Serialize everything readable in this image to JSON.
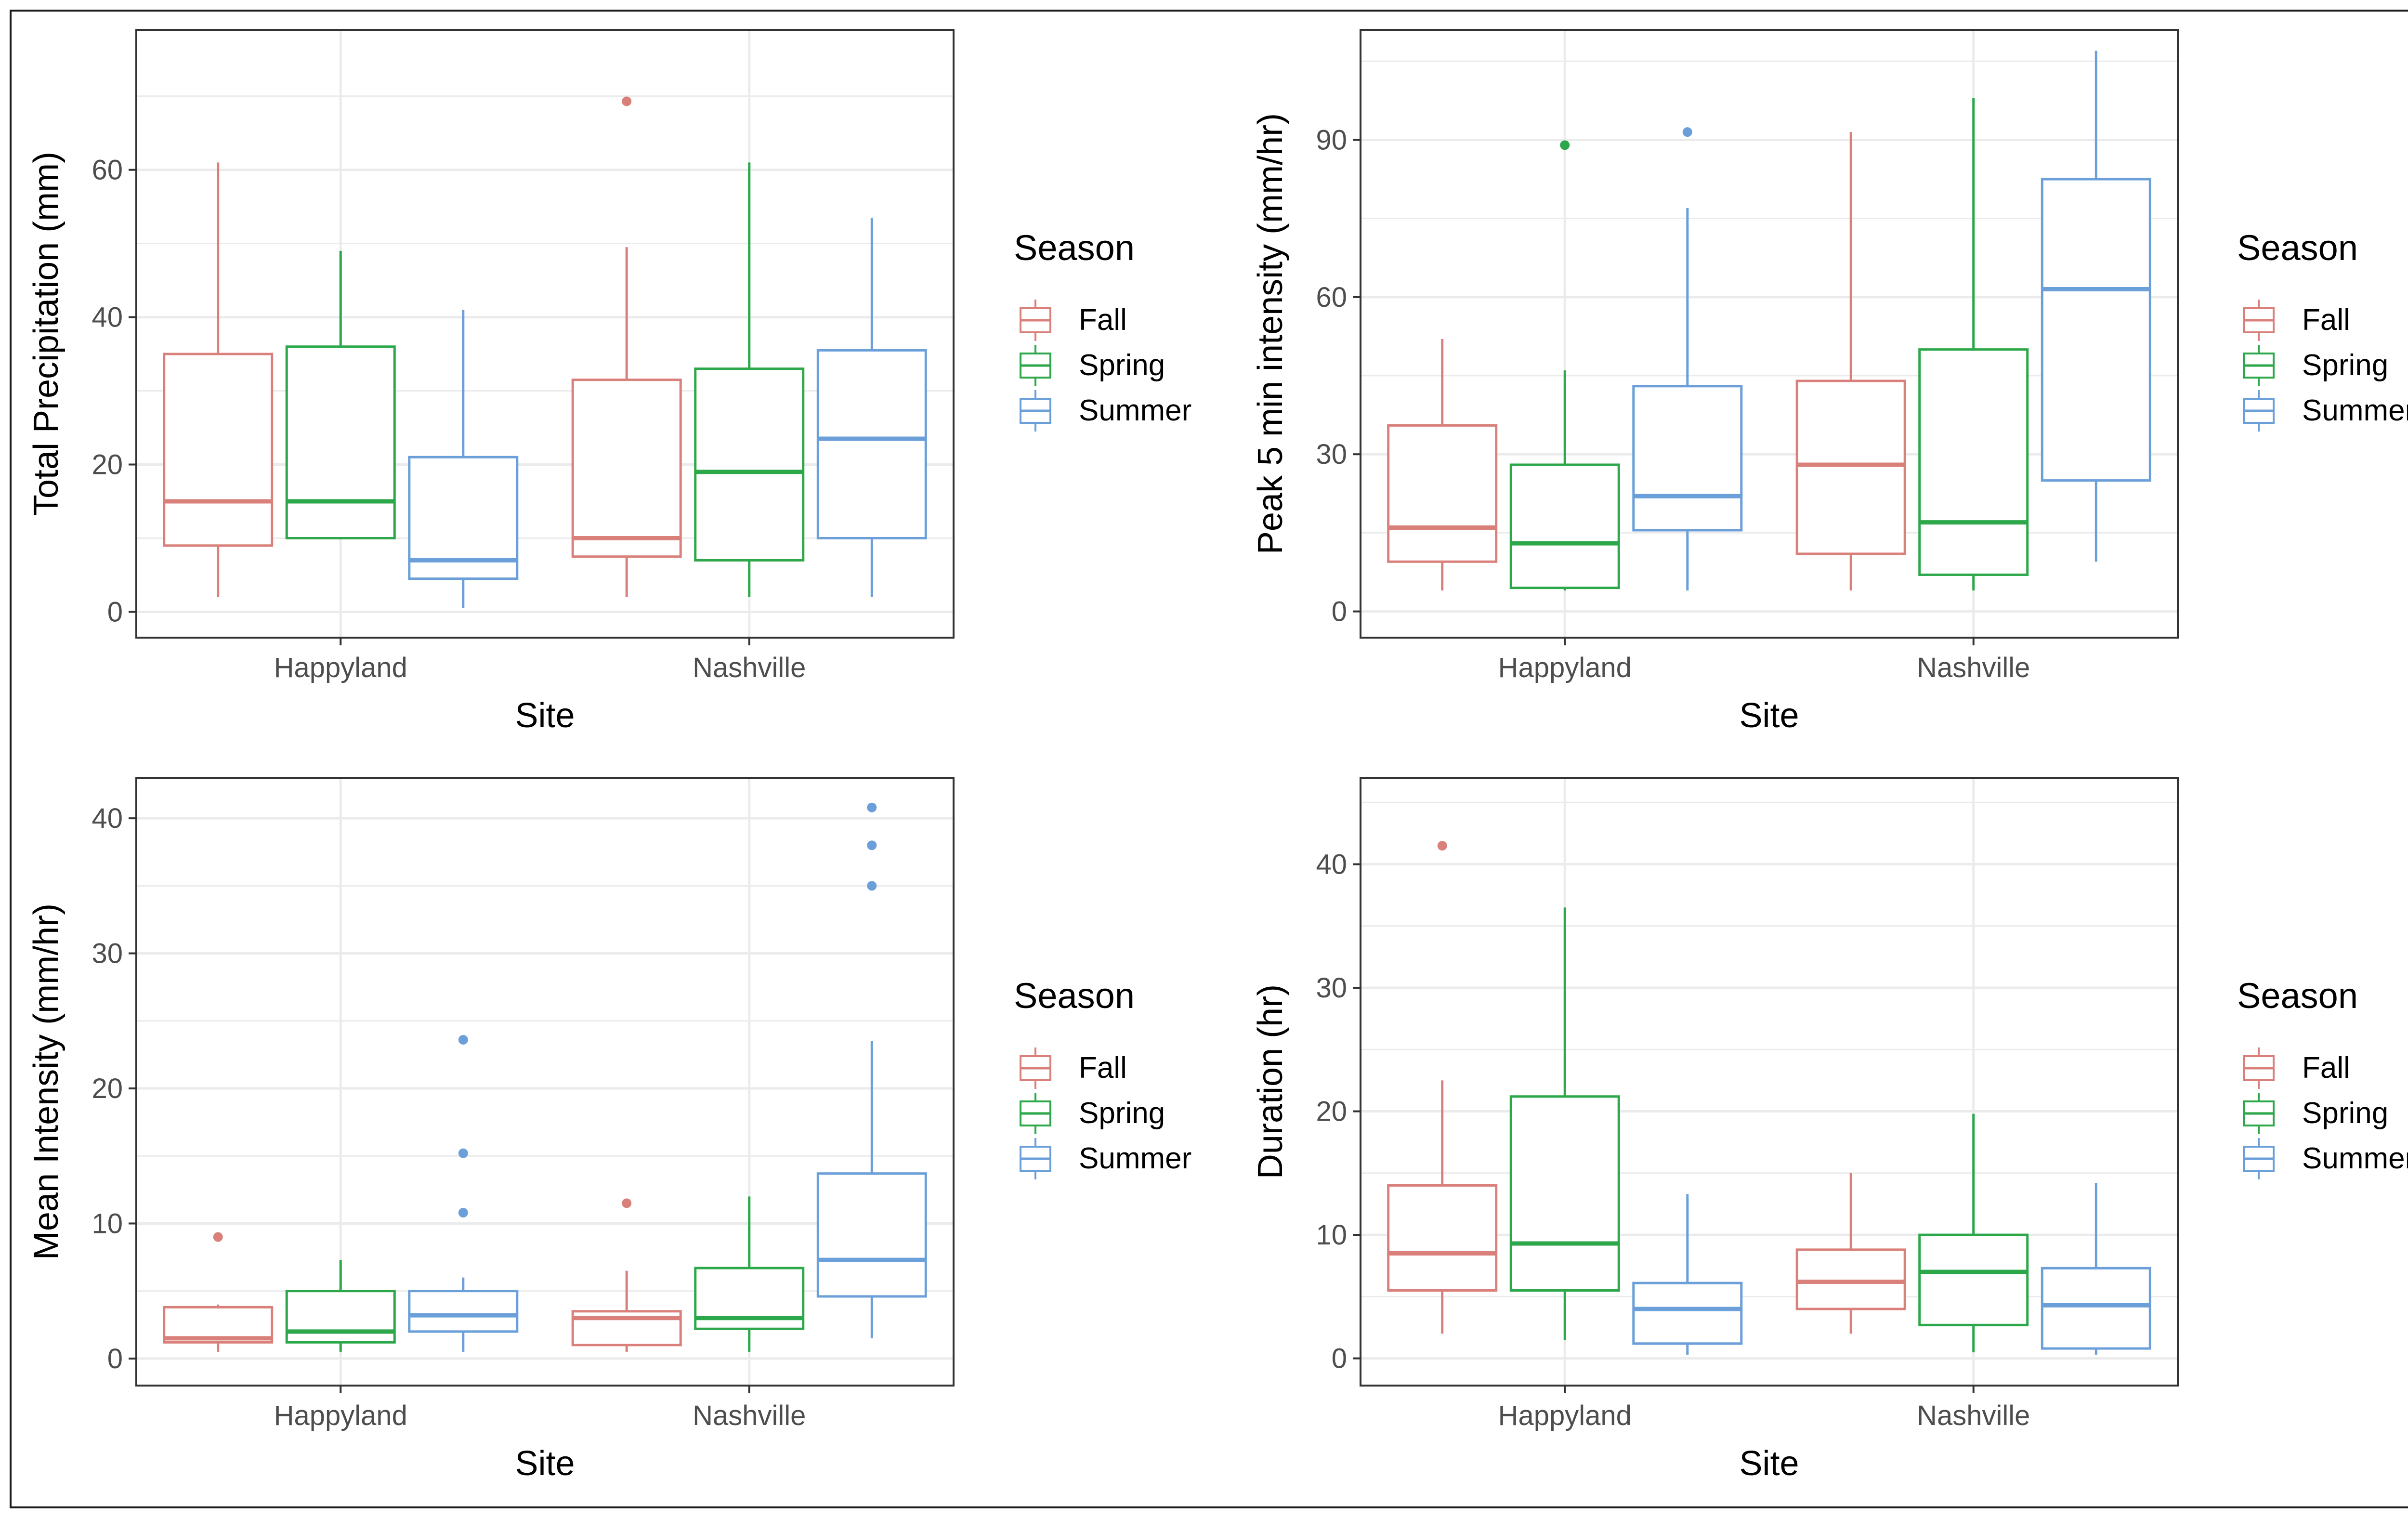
{
  "colors": {
    "Fall": "#D9807A",
    "Spring": "#2CA84A",
    "Summer": "#6B9FD9",
    "grid": "#EBEBEB",
    "panel_border": "#333333",
    "tick_label": "#4D4D4D"
  },
  "legend": {
    "title": "Season",
    "entries": [
      "Fall",
      "Spring",
      "Summer"
    ]
  },
  "chart_data": [
    {
      "type": "boxplot",
      "title": "",
      "xlabel": "Site",
      "ylabel": "Total Precipitation (mm)",
      "categories": [
        "Happyland",
        "Nashville"
      ],
      "ylim": [
        -3.5,
        79
      ],
      "yticks": [
        0,
        20,
        40,
        60
      ],
      "series": [
        {
          "name": "Fall",
          "boxes": [
            {
              "min": 2,
              "q1": 9,
              "median": 15,
              "q3": 35,
              "max": 61,
              "outliers": []
            },
            {
              "min": 2,
              "q1": 7.5,
              "median": 10,
              "q3": 31.5,
              "max": 49.5,
              "outliers": [
                69.3
              ]
            }
          ]
        },
        {
          "name": "Spring",
          "boxes": [
            {
              "min": 10,
              "q1": 10,
              "median": 15,
              "q3": 36,
              "max": 49,
              "outliers": []
            },
            {
              "min": 2,
              "q1": 7,
              "median": 19,
              "q3": 33,
              "max": 61,
              "outliers": []
            }
          ]
        },
        {
          "name": "Summer",
          "boxes": [
            {
              "min": 0.5,
              "q1": 4.5,
              "median": 7,
              "q3": 21,
              "max": 41,
              "outliers": []
            },
            {
              "min": 2,
              "q1": 10,
              "median": 23.5,
              "q3": 35.5,
              "max": 53.5,
              "outliers": []
            }
          ]
        }
      ]
    },
    {
      "type": "boxplot",
      "title": "",
      "xlabel": "Site",
      "ylabel": "Peak 5 min intensity (mm/hr)",
      "categories": [
        "Happyland",
        "Nashville"
      ],
      "ylim": [
        -5,
        111
      ],
      "yticks": [
        0,
        30,
        60,
        90
      ],
      "series": [
        {
          "name": "Fall",
          "boxes": [
            {
              "min": 4,
              "q1": 9.5,
              "median": 16,
              "q3": 35.5,
              "max": 52,
              "outliers": []
            },
            {
              "min": 4,
              "q1": 11,
              "median": 28,
              "q3": 44,
              "max": 91.5,
              "outliers": []
            }
          ]
        },
        {
          "name": "Spring",
          "boxes": [
            {
              "min": 4,
              "q1": 4.5,
              "median": 13,
              "q3": 28,
              "max": 46,
              "outliers": [
                89
              ]
            },
            {
              "min": 4,
              "q1": 7,
              "median": 17,
              "q3": 50,
              "max": 98,
              "outliers": []
            }
          ]
        },
        {
          "name": "Summer",
          "boxes": [
            {
              "min": 4,
              "q1": 15.5,
              "median": 22,
              "q3": 43,
              "max": 77,
              "outliers": [
                91.5
              ]
            },
            {
              "min": 9.5,
              "q1": 25,
              "median": 61.5,
              "q3": 82.5,
              "max": 107,
              "outliers": []
            }
          ]
        }
      ]
    },
    {
      "type": "boxplot",
      "title": "",
      "xlabel": "Site",
      "ylabel": "Mean Intensity (mm/hr)",
      "categories": [
        "Happyland",
        "Nashville"
      ],
      "ylim": [
        -2,
        43
      ],
      "yticks": [
        0,
        10,
        20,
        30,
        40
      ],
      "series": [
        {
          "name": "Fall",
          "boxes": [
            {
              "min": 0.5,
              "q1": 1.2,
              "median": 1.5,
              "q3": 3.8,
              "max": 4,
              "outliers": [
                9
              ]
            },
            {
              "min": 0.5,
              "q1": 1,
              "median": 3,
              "q3": 3.5,
              "max": 6.5,
              "outliers": [
                11.5
              ]
            }
          ]
        },
        {
          "name": "Spring",
          "boxes": [
            {
              "min": 0.5,
              "q1": 1.2,
              "median": 2,
              "q3": 5,
              "max": 7.3,
              "outliers": []
            },
            {
              "min": 0.5,
              "q1": 2.2,
              "median": 3,
              "q3": 6.7,
              "max": 12,
              "outliers": []
            }
          ]
        },
        {
          "name": "Summer",
          "boxes": [
            {
              "min": 0.5,
              "q1": 2,
              "median": 3.2,
              "q3": 5,
              "max": 6,
              "outliers": [
                10.8,
                15.2,
                23.6
              ]
            },
            {
              "min": 1.5,
              "q1": 4.6,
              "median": 7.3,
              "q3": 13.7,
              "max": 23.5,
              "outliers": [
                35,
                38,
                40.8
              ]
            }
          ]
        }
      ]
    },
    {
      "type": "boxplot",
      "title": "",
      "xlabel": "Site",
      "ylabel": "Duration (hr)",
      "categories": [
        "Happyland",
        "Nashville"
      ],
      "ylim": [
        -2.2,
        47
      ],
      "yticks": [
        0,
        10,
        20,
        30,
        40
      ],
      "series": [
        {
          "name": "Fall",
          "boxes": [
            {
              "min": 2,
              "q1": 5.5,
              "median": 8.5,
              "q3": 14,
              "max": 22.5,
              "outliers": [
                41.5
              ]
            },
            {
              "min": 2,
              "q1": 4,
              "median": 6.2,
              "q3": 8.8,
              "max": 15,
              "outliers": []
            }
          ]
        },
        {
          "name": "Spring",
          "boxes": [
            {
              "min": 1.5,
              "q1": 5.5,
              "median": 9.3,
              "q3": 21.2,
              "max": 36.5,
              "outliers": []
            },
            {
              "min": 0.5,
              "q1": 2.7,
              "median": 7,
              "q3": 10,
              "max": 19.8,
              "outliers": []
            }
          ]
        },
        {
          "name": "Summer",
          "boxes": [
            {
              "min": 0.3,
              "q1": 1.2,
              "median": 4,
              "q3": 6.1,
              "max": 13.3,
              "outliers": []
            },
            {
              "min": 0.3,
              "q1": 0.8,
              "median": 4.3,
              "q3": 7.3,
              "max": 14.2,
              "outliers": []
            }
          ]
        }
      ]
    }
  ]
}
